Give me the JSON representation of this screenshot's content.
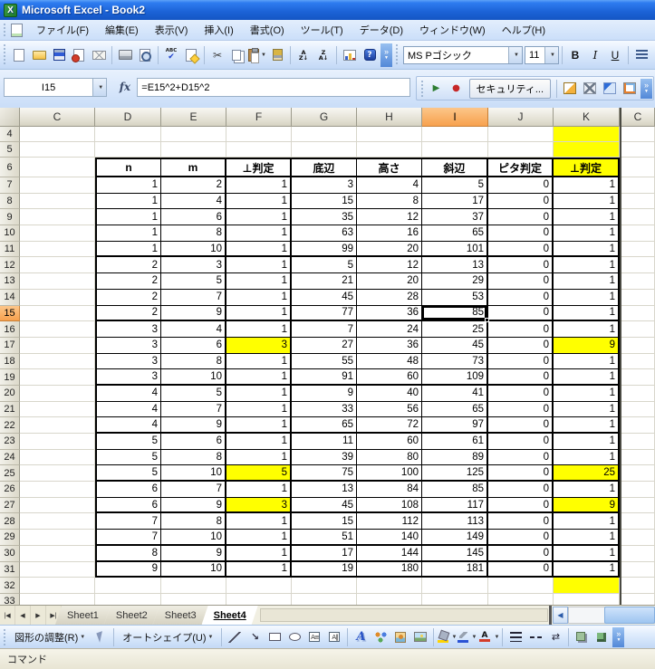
{
  "window": {
    "title": "Microsoft Excel - Book2"
  },
  "menu": {
    "items": [
      "ファイル(F)",
      "編集(E)",
      "表示(V)",
      "挿入(I)",
      "書式(O)",
      "ツール(T)",
      "データ(D)",
      "ウィンドウ(W)",
      "ヘルプ(H)"
    ]
  },
  "standard_toolbar": {
    "icons": [
      "new",
      "open",
      "save",
      "permission",
      "mail",
      "sep",
      "print",
      "print-preview",
      "sep",
      "spelling",
      "research",
      "sep",
      "cut",
      "copy",
      "paste",
      "caret",
      "format-painter",
      "sep",
      "sort-asc",
      "sort-desc",
      "sep",
      "chart-wizard",
      "help"
    ]
  },
  "formatting": {
    "font_name": "MS Pゴシック",
    "font_size": "11",
    "bold": "B",
    "italic": "I",
    "underline": "U"
  },
  "formula_bar": {
    "cell_ref": "I15",
    "fx_label": "fx",
    "formula": "=E15^2+D15^2"
  },
  "vb_toolbar": {
    "left_icons": [
      "run",
      "record"
    ],
    "security_label": "セキュリティ...",
    "right_icons": [
      "vb-editor",
      "toolbox",
      "design-mode",
      "script-editor"
    ]
  },
  "grid": {
    "columns": [
      "C",
      "D",
      "E",
      "F",
      "G",
      "H",
      "I",
      "J",
      "K"
    ],
    "right_pane_column": "C",
    "selected_column": "I",
    "selected_row": 15,
    "active_cell": {
      "row": 15,
      "column": "I"
    },
    "headers": [
      "n",
      "m",
      "⊥判定",
      "底辺",
      "高さ",
      "斜辺",
      "ピタ判定",
      "⊥判定"
    ],
    "header_yellow_index": 7,
    "rows": [
      {
        "n": 4,
        "kind": "blank",
        "k_yellow": true
      },
      {
        "n": 5,
        "kind": "blank",
        "k_yellow": true
      },
      {
        "n": 6,
        "kind": "header"
      },
      {
        "n": 7,
        "kind": "data",
        "cells": [
          1,
          2,
          1,
          3,
          4,
          5,
          0,
          1
        ]
      },
      {
        "n": 8,
        "kind": "data",
        "cells": [
          1,
          4,
          1,
          15,
          8,
          17,
          0,
          1
        ]
      },
      {
        "n": 9,
        "kind": "data",
        "cells": [
          1,
          6,
          1,
          35,
          12,
          37,
          0,
          1
        ]
      },
      {
        "n": 10,
        "kind": "data",
        "cells": [
          1,
          8,
          1,
          63,
          16,
          65,
          0,
          1
        ]
      },
      {
        "n": 11,
        "kind": "data",
        "cells": [
          1,
          10,
          1,
          99,
          20,
          101,
          0,
          1
        ],
        "end": true
      },
      {
        "n": 12,
        "kind": "data",
        "cells": [
          2,
          3,
          1,
          5,
          12,
          13,
          0,
          1
        ]
      },
      {
        "n": 13,
        "kind": "data",
        "cells": [
          2,
          5,
          1,
          21,
          20,
          29,
          0,
          1
        ]
      },
      {
        "n": 14,
        "kind": "data",
        "cells": [
          2,
          7,
          1,
          45,
          28,
          53,
          0,
          1
        ]
      },
      {
        "n": 15,
        "kind": "data",
        "cells": [
          2,
          9,
          1,
          77,
          36,
          85,
          0,
          1
        ],
        "end": true
      },
      {
        "n": 16,
        "kind": "data",
        "cells": [
          3,
          4,
          1,
          7,
          24,
          25,
          0,
          1
        ]
      },
      {
        "n": 17,
        "kind": "data",
        "cells": [
          3,
          6,
          3,
          27,
          36,
          45,
          0,
          9
        ],
        "yellow": [
          2,
          7
        ]
      },
      {
        "n": 18,
        "kind": "data",
        "cells": [
          3,
          8,
          1,
          55,
          48,
          73,
          0,
          1
        ]
      },
      {
        "n": 19,
        "kind": "data",
        "cells": [
          3,
          10,
          1,
          91,
          60,
          109,
          0,
          1
        ],
        "end": true
      },
      {
        "n": 20,
        "kind": "data",
        "cells": [
          4,
          5,
          1,
          9,
          40,
          41,
          0,
          1
        ]
      },
      {
        "n": 21,
        "kind": "data",
        "cells": [
          4,
          7,
          1,
          33,
          56,
          65,
          0,
          1
        ]
      },
      {
        "n": 22,
        "kind": "data",
        "cells": [
          4,
          9,
          1,
          65,
          72,
          97,
          0,
          1
        ],
        "end": true
      },
      {
        "n": 23,
        "kind": "data",
        "cells": [
          5,
          6,
          1,
          11,
          60,
          61,
          0,
          1
        ]
      },
      {
        "n": 24,
        "kind": "data",
        "cells": [
          5,
          8,
          1,
          39,
          80,
          89,
          0,
          1
        ]
      },
      {
        "n": 25,
        "kind": "data",
        "cells": [
          5,
          10,
          5,
          75,
          100,
          125,
          0,
          25
        ],
        "yellow": [
          2,
          7
        ],
        "end": true
      },
      {
        "n": 26,
        "kind": "data",
        "cells": [
          6,
          7,
          1,
          13,
          84,
          85,
          0,
          1
        ]
      },
      {
        "n": 27,
        "kind": "data",
        "cells": [
          6,
          9,
          3,
          45,
          108,
          117,
          0,
          9
        ],
        "yellow": [
          2,
          7
        ],
        "end": true
      },
      {
        "n": 28,
        "kind": "data",
        "cells": [
          7,
          8,
          1,
          15,
          112,
          113,
          0,
          1
        ]
      },
      {
        "n": 29,
        "kind": "data",
        "cells": [
          7,
          10,
          1,
          51,
          140,
          149,
          0,
          1
        ],
        "end": true
      },
      {
        "n": 30,
        "kind": "data",
        "cells": [
          8,
          9,
          1,
          17,
          144,
          145,
          0,
          1
        ],
        "end": true
      },
      {
        "n": 31,
        "kind": "data",
        "cells": [
          9,
          10,
          1,
          19,
          180,
          181,
          0,
          1
        ],
        "end": true
      },
      {
        "n": 32,
        "kind": "blank",
        "k_yellow": true
      },
      {
        "n": 33,
        "kind": "blank"
      }
    ]
  },
  "sheet_tabs": {
    "tabs": [
      "Sheet1",
      "Sheet2",
      "Sheet3",
      "Sheet4"
    ],
    "active": "Sheet4"
  },
  "drawing_toolbar": {
    "draw_label": "図形の調整(R)",
    "autoshapes_label": "オートシェイプ(U)",
    "icons": [
      "line",
      "arrow",
      "rect",
      "oval",
      "textbox",
      "v-textbox",
      "sep",
      "wordart",
      "diagram",
      "clipart",
      "picture",
      "sep",
      "fill-color",
      "caret",
      "line-color",
      "caret",
      "font-color",
      "caret",
      "sep",
      "line-style",
      "dash-style",
      "arrow-style",
      "sep",
      "shadow",
      "3d"
    ]
  },
  "status_bar": {
    "left_text": "コマンド"
  }
}
